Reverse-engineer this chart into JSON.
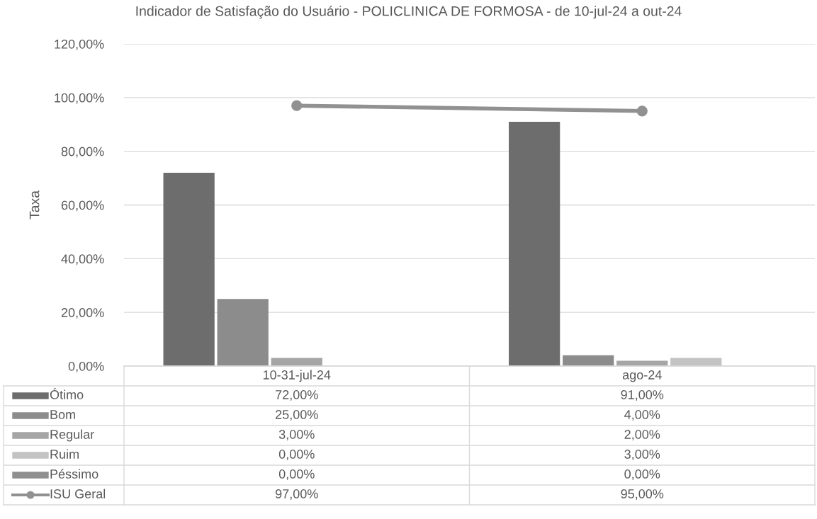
{
  "chart_data": {
    "type": "bar",
    "title": "Indicador de Satisfação do Usuário - POLICLINICA DE FORMOSA - de 10-jul-24 a out-24",
    "ylabel": "Taxa",
    "categories": [
      "10-31-jul-24",
      "ago-24"
    ],
    "series": [
      {
        "name": "Ótimo",
        "color": "#6d6d6d",
        "values": [
          72,
          91
        ],
        "value_labels": [
          "72,00%",
          "91,00%"
        ]
      },
      {
        "name": "Bom",
        "color": "#8c8c8c",
        "values": [
          25,
          4
        ],
        "value_labels": [
          "25,00%",
          "4,00%"
        ]
      },
      {
        "name": "Regular",
        "color": "#a5a5a5",
        "values": [
          3,
          2
        ],
        "value_labels": [
          "3,00%",
          "2,00%"
        ]
      },
      {
        "name": "Ruim",
        "color": "#c3c3c3",
        "values": [
          0,
          3
        ],
        "value_labels": [
          "0,00%",
          "3,00%"
        ]
      },
      {
        "name": "Péssimo",
        "color": "#8f8f8f",
        "values": [
          0,
          0
        ],
        "value_labels": [
          "0,00%",
          "0,00%"
        ]
      },
      {
        "name": "ISU Geral",
        "type": "line",
        "color": "#919191",
        "marker": "circle",
        "values": [
          97,
          95
        ],
        "value_labels": [
          "97,00%",
          "95,00%"
        ]
      }
    ],
    "ylim": [
      0,
      120
    ],
    "yticks": [
      {
        "value": 0,
        "label": "0,00%"
      },
      {
        "value": 20,
        "label": "20,00%"
      },
      {
        "value": 40,
        "label": "40,00%"
      },
      {
        "value": 60,
        "label": "60,00%"
      },
      {
        "value": 80,
        "label": "80,00%"
      },
      {
        "value": 100,
        "label": "100,00%"
      },
      {
        "value": 120,
        "label": "120,00%"
      }
    ],
    "grid": "y",
    "legend": "bottom"
  }
}
